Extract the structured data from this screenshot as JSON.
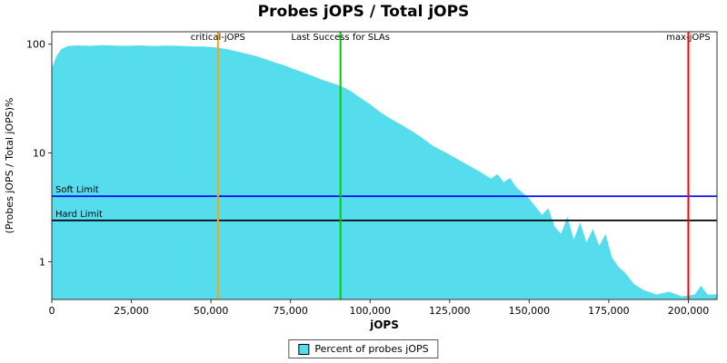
{
  "title": "Probes jOPS / Total jOPS",
  "chart_data": {
    "type": "area",
    "title": "Probes jOPS / Total jOPS",
    "xlabel": "jOPS",
    "ylabel": "(Probes jOPS / Total jOPS)%",
    "xlim": [
      0,
      209000
    ],
    "ylim_log": [
      0.45,
      130
    ],
    "x_ticks": [
      {
        "value": 0,
        "label": "0"
      },
      {
        "value": 25000,
        "label": "25,000"
      },
      {
        "value": 50000,
        "label": "50,000"
      },
      {
        "value": 75000,
        "label": "75,000"
      },
      {
        "value": 100000,
        "label": "100,000"
      },
      {
        "value": 125000,
        "label": "125,000"
      },
      {
        "value": 150000,
        "label": "150,000"
      },
      {
        "value": 175000,
        "label": "175,000"
      },
      {
        "value": 200000,
        "label": "200,000"
      }
    ],
    "y_ticks": [
      {
        "value": 1,
        "label": "1"
      },
      {
        "value": 10,
        "label": "10"
      },
      {
        "value": 100,
        "label": "100"
      }
    ],
    "series": [
      {
        "name": "Percent of probes jOPS",
        "color": "#55DDEE",
        "points": [
          [
            0,
            60
          ],
          [
            1500,
            78
          ],
          [
            3000,
            90
          ],
          [
            5000,
            96
          ],
          [
            8000,
            97.5
          ],
          [
            12000,
            96.5
          ],
          [
            16000,
            98
          ],
          [
            20000,
            97
          ],
          [
            24000,
            96.5
          ],
          [
            28000,
            97.5
          ],
          [
            32000,
            96
          ],
          [
            36000,
            97
          ],
          [
            40000,
            96.5
          ],
          [
            44000,
            95.5
          ],
          [
            48000,
            95
          ],
          [
            52000,
            93
          ],
          [
            55000,
            90
          ],
          [
            58000,
            86
          ],
          [
            61000,
            82
          ],
          [
            64000,
            78
          ],
          [
            67000,
            73
          ],
          [
            70000,
            68
          ],
          [
            73000,
            64
          ],
          [
            76000,
            59
          ],
          [
            79000,
            55
          ],
          [
            82000,
            51
          ],
          [
            85000,
            47
          ],
          [
            88000,
            44
          ],
          [
            91000,
            41
          ],
          [
            94000,
            37
          ],
          [
            97000,
            32
          ],
          [
            100000,
            28
          ],
          [
            103000,
            24
          ],
          [
            106000,
            21
          ],
          [
            110000,
            18
          ],
          [
            113000,
            16
          ],
          [
            116000,
            14
          ],
          [
            120000,
            11.5
          ],
          [
            124000,
            10
          ],
          [
            128000,
            8.6
          ],
          [
            132000,
            7.4
          ],
          [
            135000,
            6.6
          ],
          [
            138000,
            5.8
          ],
          [
            140000,
            6.4
          ],
          [
            142000,
            5.4
          ],
          [
            144000,
            5.9
          ],
          [
            146000,
            4.8
          ],
          [
            148000,
            4.3
          ],
          [
            150000,
            3.8
          ],
          [
            152000,
            3.2
          ],
          [
            154000,
            2.7
          ],
          [
            156000,
            3.1
          ],
          [
            158000,
            2.1
          ],
          [
            160000,
            1.8
          ],
          [
            162000,
            2.6
          ],
          [
            164000,
            1.6
          ],
          [
            166000,
            2.3
          ],
          [
            168000,
            1.5
          ],
          [
            170000,
            2.0
          ],
          [
            172000,
            1.4
          ],
          [
            174000,
            1.8
          ],
          [
            176000,
            1.1
          ],
          [
            178000,
            0.9
          ],
          [
            180000,
            0.8
          ],
          [
            183000,
            0.62
          ],
          [
            186000,
            0.55
          ],
          [
            190000,
            0.5
          ],
          [
            194000,
            0.53
          ],
          [
            198000,
            0.48
          ],
          [
            202000,
            0.5
          ],
          [
            204000,
            0.6
          ],
          [
            206000,
            0.5
          ],
          [
            209000,
            0.5
          ]
        ]
      }
    ],
    "vlines": [
      {
        "label": "critical-jOPS",
        "x": 52200,
        "color": "#FFA500"
      },
      {
        "label": "Last Success for SLAs",
        "x": 90700,
        "color": "#00CC00"
      },
      {
        "label": "max-jOPS",
        "x": 200000,
        "color": "#FF0000"
      }
    ],
    "hlines": [
      {
        "label": "Soft Limit",
        "y": 4.0,
        "color": "#0000FF"
      },
      {
        "label": "Hard Limit",
        "y": 2.4,
        "color": "#000000"
      }
    ],
    "legend": {
      "label": "Percent of probes jOPS",
      "swatch_color": "#55DDEE",
      "position": "bottom"
    }
  }
}
